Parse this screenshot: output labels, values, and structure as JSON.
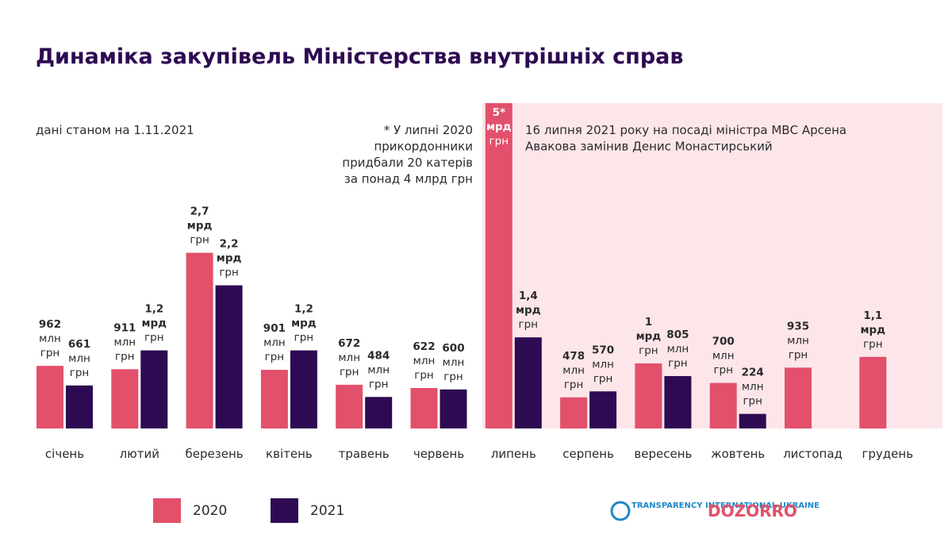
{
  "chart_data": {
    "type": "bar",
    "title": "Динаміка закупівель Міністерства внутрішніх справ",
    "subtitle": "дані станом на 1.11.2021",
    "annotations": [
      "* У липні 2020 прикордонники придбали 20 катерів за понад 4 млрд грн",
      "16 липня 2021 року на посаді міністра МВС Арсена Авакова замінив Денис Монастирський"
    ],
    "categories": [
      "січень",
      "лютий",
      "березень",
      "квітень",
      "травень",
      "червень",
      "липень",
      "серпень",
      "вересень",
      "жовтень",
      "листопад",
      "грудень"
    ],
    "series": [
      {
        "name": "2020",
        "color": "#e2506b",
        "values": [
          962,
          911,
          2700,
          901,
          672,
          622,
          5000,
          478,
          1000,
          700,
          935,
          1100
        ],
        "value_labels": [
          "962 млн грн",
          "911 млн грн",
          "2,7 мрд грн",
          "901 млн грн",
          "672 млн грн",
          "622 млн грн",
          "5* мрд грн",
          "478 млн грн",
          "1 мрд грн",
          "700 млн грн",
          "935 млн грн",
          "1,1 мрд грн"
        ]
      },
      {
        "name": "2021",
        "color": "#2e0a52",
        "values": [
          661,
          1200,
          2200,
          1200,
          484,
          600,
          1400,
          570,
          805,
          224,
          null,
          null
        ],
        "value_labels": [
          "661 млн грн",
          "1,2 мрд грн",
          "2,2 мрд грн",
          "1,2 мрд грн",
          "484 млн грн",
          "600 млн грн",
          "1,4 мрд грн",
          "570 млн грн",
          "805 млн грн",
          "224 млн грн",
          null,
          null
        ]
      }
    ],
    "logos": [
      "TRANSPARENCY INTERNATIONAL UKRAINE",
      "DOZORRO"
    ]
  }
}
